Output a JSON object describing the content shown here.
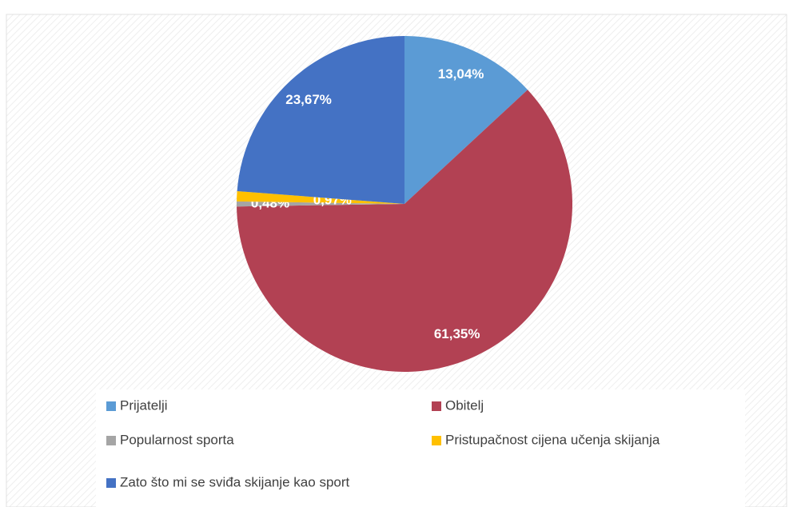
{
  "chart_data": {
    "type": "pie",
    "categories": [
      "Prijatelji",
      "Obitelj",
      "Popularnost sporta",
      "Pristupačnost cijena učenja skijanja",
      "Zato što mi se sviđa skijanje kao sport"
    ],
    "values": [
      13.04,
      61.35,
      0.48,
      0.97,
      23.67
    ],
    "value_labels": [
      "13,04%",
      "61,35%",
      "0,48%",
      "0,97%",
      "23,67%"
    ],
    "colors": [
      "#5b9bd5",
      "#b24153",
      "#a5a5a5",
      "#ffc000",
      "#4472c4"
    ],
    "legend": "bottom"
  }
}
